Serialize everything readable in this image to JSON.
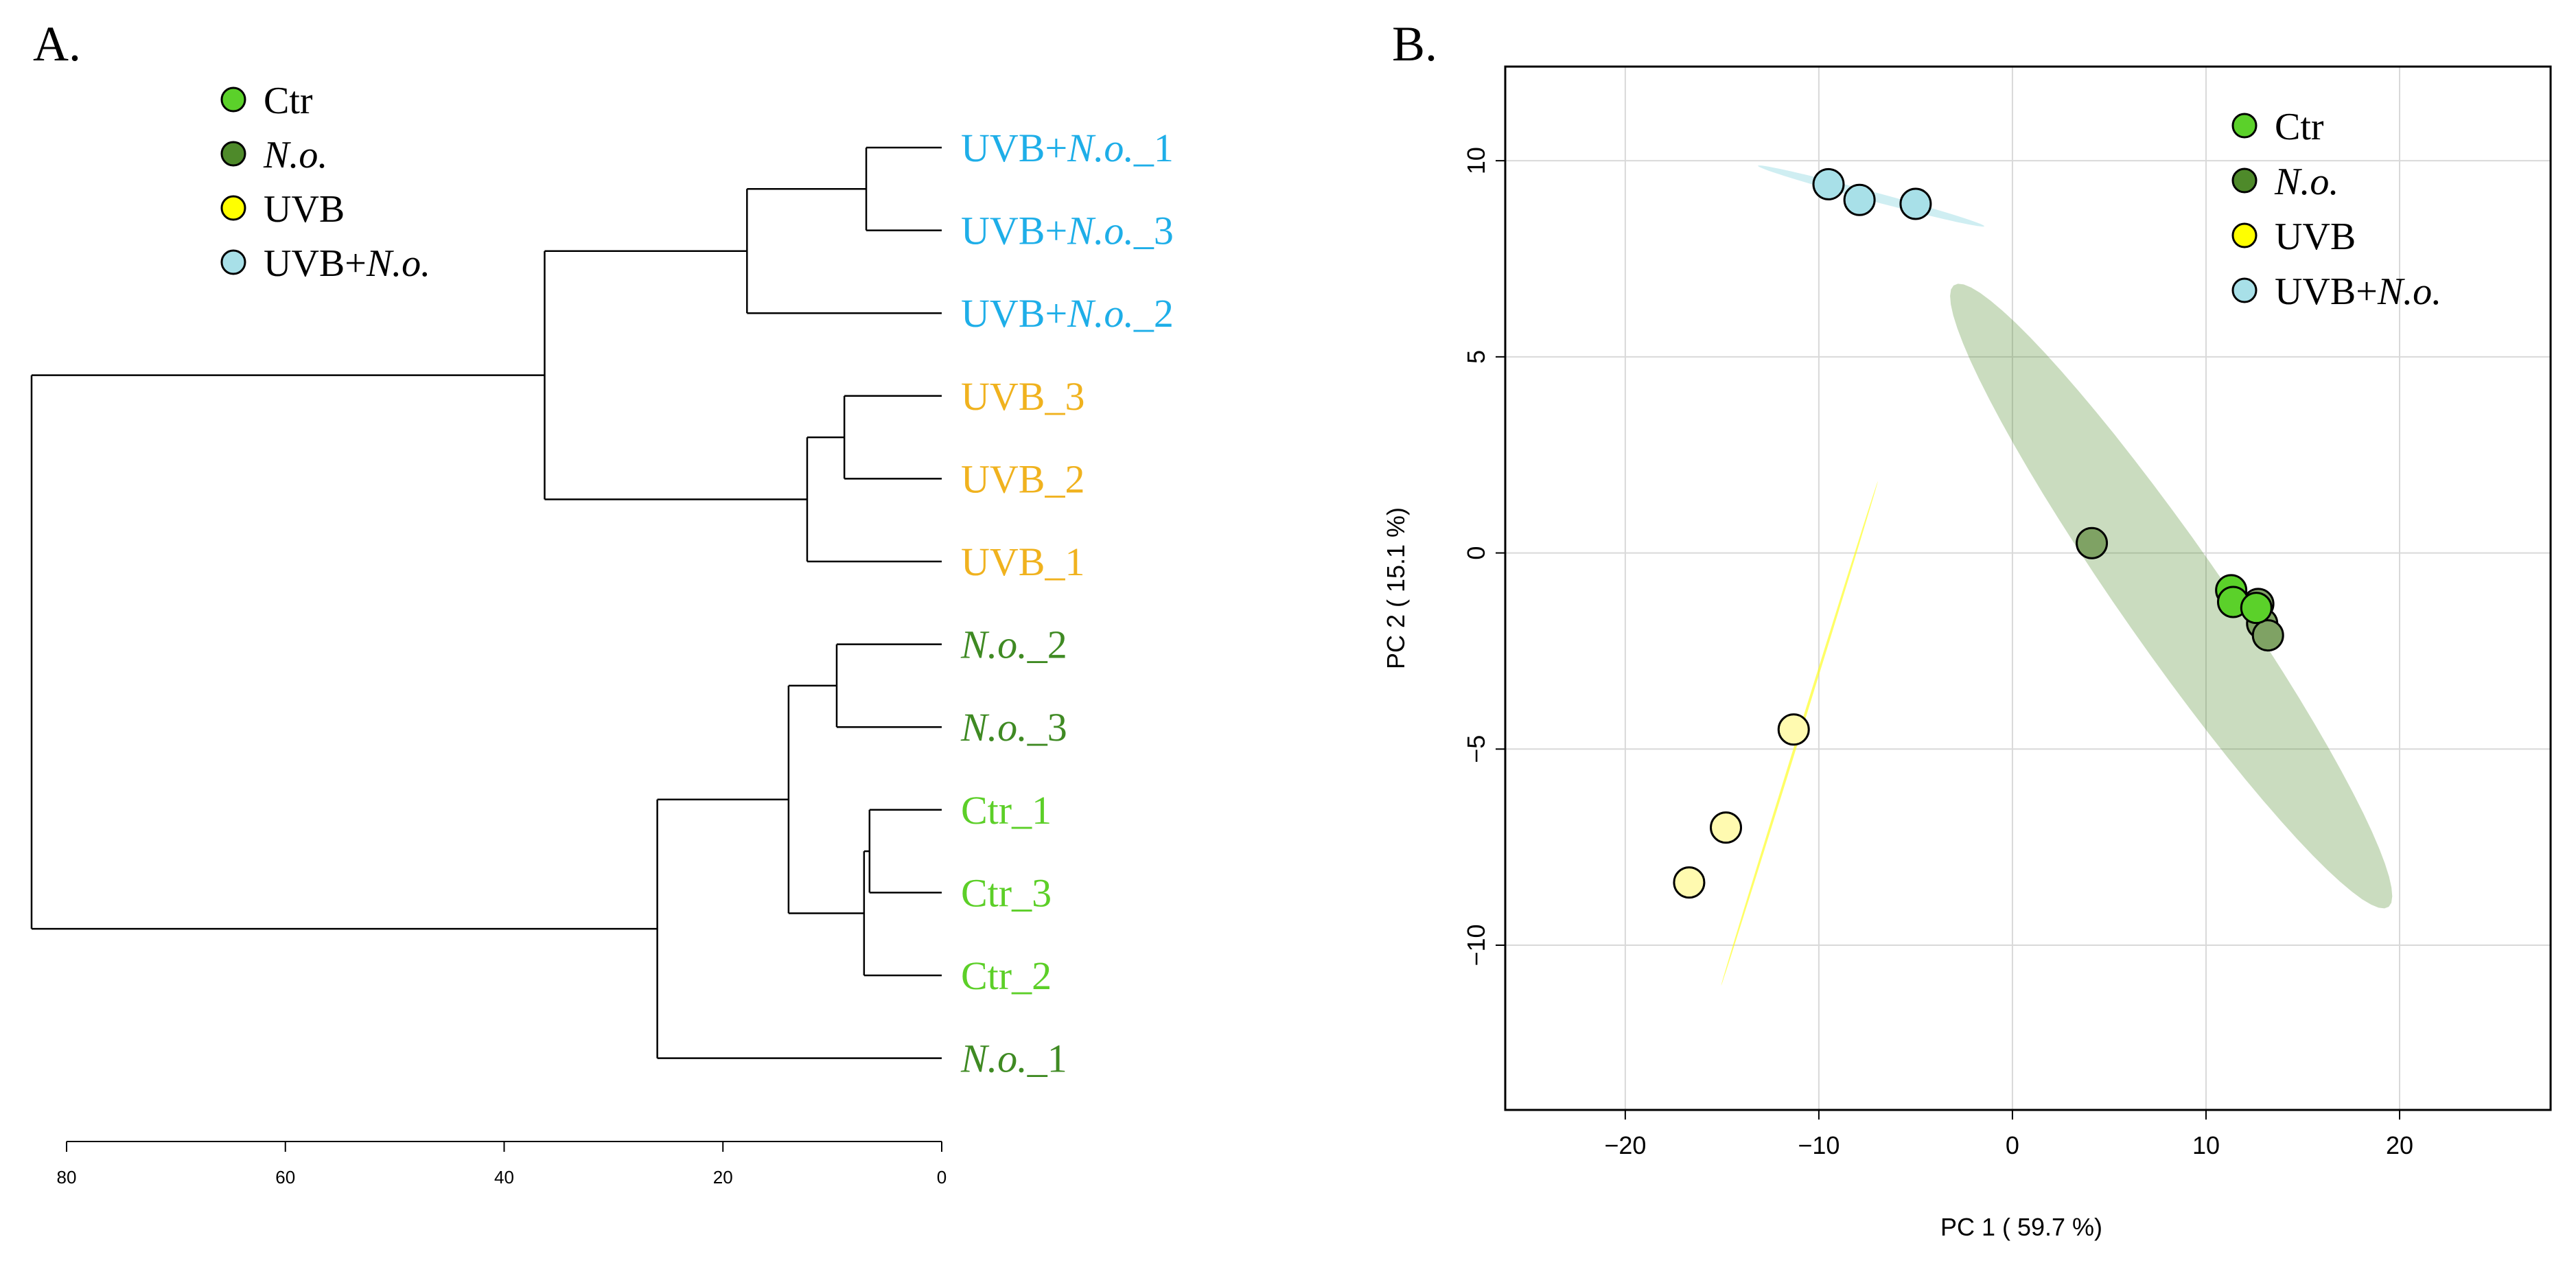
{
  "colors": {
    "Ctr": "#5bd12a",
    "No": "#4e8a2a",
    "UVB": "#ffff00",
    "UVBNo": "#a8e0e8",
    "label_ctr": "#5ccf28",
    "label_no": "#3f8a23",
    "label_uvb": "#f0b21e",
    "label_uvbno": "#1eaee8"
  },
  "panel_a": {
    "letter": "A.",
    "legend": [
      {
        "key": "Ctr",
        "parts": [
          {
            "t": "Ctr",
            "i": false
          }
        ]
      },
      {
        "key": "No",
        "parts": [
          {
            "t": "N.o.",
            "i": true
          }
        ]
      },
      {
        "key": "UVB",
        "parts": [
          {
            "t": "UVB",
            "i": false
          }
        ]
      },
      {
        "key": "UVBNo",
        "parts": [
          {
            "t": "UVB+",
            "i": false
          },
          {
            "t": "N.o.",
            "i": true
          }
        ]
      }
    ]
  },
  "panel_b": {
    "letter": "B.",
    "legend": [
      {
        "key": "Ctr",
        "parts": [
          {
            "t": "Ctr",
            "i": false
          }
        ]
      },
      {
        "key": "No",
        "parts": [
          {
            "t": "N.o.",
            "i": true
          }
        ]
      },
      {
        "key": "UVB",
        "parts": [
          {
            "t": "UVB",
            "i": false
          }
        ]
      },
      {
        "key": "UVBNo",
        "parts": [
          {
            "t": "UVB+",
            "i": false
          },
          {
            "t": "N.o.",
            "i": true
          }
        ]
      }
    ]
  },
  "chart_data": [
    {
      "type": "dendrogram",
      "orientation": "horizontal",
      "axis_ticks": [
        80,
        60,
        40,
        20,
        0
      ],
      "xlim": [
        83.2,
        0
      ],
      "leaves": [
        {
          "id": "UVBNo_1",
          "color": "label_uvbno",
          "parts": [
            {
              "t": "UVB+",
              "i": false
            },
            {
              "t": "N.o.",
              "i": true
            },
            {
              "t": "_1",
              "i": false
            }
          ]
        },
        {
          "id": "UVBNo_3",
          "color": "label_uvbno",
          "parts": [
            {
              "t": "UVB+",
              "i": false
            },
            {
              "t": "N.o.",
              "i": true
            },
            {
              "t": "_3",
              "i": false
            }
          ]
        },
        {
          "id": "UVBNo_2",
          "color": "label_uvbno",
          "parts": [
            {
              "t": "UVB+",
              "i": false
            },
            {
              "t": "N.o.",
              "i": true
            },
            {
              "t": "_2",
              "i": false
            }
          ]
        },
        {
          "id": "UVB_3",
          "color": "label_uvb",
          "parts": [
            {
              "t": "UVB_3",
              "i": false
            }
          ]
        },
        {
          "id": "UVB_2",
          "color": "label_uvb",
          "parts": [
            {
              "t": "UVB_2",
              "i": false
            }
          ]
        },
        {
          "id": "UVB_1",
          "color": "label_uvb",
          "parts": [
            {
              "t": "UVB_1",
              "i": false
            }
          ]
        },
        {
          "id": "No_2",
          "color": "label_no",
          "parts": [
            {
              "t": "N.o.",
              "i": true
            },
            {
              "t": "_2",
              "i": false
            }
          ]
        },
        {
          "id": "No_3",
          "color": "label_no",
          "parts": [
            {
              "t": "N.o.",
              "i": true
            },
            {
              "t": "_3",
              "i": false
            }
          ]
        },
        {
          "id": "Ctr_1",
          "color": "label_ctr",
          "parts": [
            {
              "t": "Ctr_1",
              "i": false
            }
          ]
        },
        {
          "id": "Ctr_3",
          "color": "label_ctr",
          "parts": [
            {
              "t": "Ctr_3",
              "i": false
            }
          ]
        },
        {
          "id": "Ctr_2",
          "color": "label_ctr",
          "parts": [
            {
              "t": "Ctr_2",
              "i": false
            }
          ]
        },
        {
          "id": "No_1",
          "color": "label_no",
          "parts": [
            {
              "t": "N.o.",
              "i": true
            },
            {
              "t": "_1",
              "i": false
            }
          ]
        }
      ],
      "merges": [
        {
          "id": "m1",
          "children": [
            "UVBNo_1",
            "UVBNo_3"
          ],
          "height": 6.9
        },
        {
          "id": "m2",
          "children": [
            "m1",
            "UVBNo_2"
          ],
          "height": 17.8
        },
        {
          "id": "m3",
          "children": [
            "UVB_3",
            "UVB_2"
          ],
          "height": 8.9
        },
        {
          "id": "m4",
          "children": [
            "m3",
            "UVB_1"
          ],
          "height": 12.3
        },
        {
          "id": "m5",
          "children": [
            "m2",
            "m4"
          ],
          "height": 36.3
        },
        {
          "id": "m6",
          "children": [
            "No_2",
            "No_3"
          ],
          "height": 9.6
        },
        {
          "id": "m7",
          "children": [
            "Ctr_1",
            "Ctr_3"
          ],
          "height": 6.6
        },
        {
          "id": "m8",
          "children": [
            "m7",
            "Ctr_2"
          ],
          "height": 7.1
        },
        {
          "id": "m9",
          "children": [
            "m6",
            "m8"
          ],
          "height": 14.0
        },
        {
          "id": "m10",
          "children": [
            "m9",
            "No_1"
          ],
          "height": 26.0
        },
        {
          "id": "m11",
          "children": [
            "m5",
            "m10"
          ],
          "height": 83.2
        }
      ]
    },
    {
      "type": "scatter",
      "title": "",
      "xlabel": "PC 1 ( 59.7 %)",
      "ylabel": "PC 2 ( 15.1 %)",
      "xlim": [
        -26.2,
        27.8
      ],
      "ylim": [
        -14.2,
        12.4
      ],
      "xticks": [
        -20,
        -10,
        0,
        10,
        20
      ],
      "yticks": [
        -10,
        -5,
        0,
        5,
        10
      ],
      "xtick_labels": [
        "−20",
        "−10",
        "0",
        "10",
        "20"
      ],
      "ytick_labels": [
        "−10",
        "−5",
        "0",
        "5",
        "10"
      ],
      "grid": true,
      "legend_position": "top-right",
      "ellipses": [
        {
          "group": "UVBNo",
          "cx": -7.3,
          "cy": 9.1,
          "rx": 5.9,
          "ry": 0.12,
          "angle_deg": -7.5,
          "opacity": 0.55
        },
        {
          "group": "No",
          "cx": 8.2,
          "cy": -1.1,
          "rx": 13.8,
          "ry": 1.85,
          "angle_deg": -34.5,
          "opacity": 0.3
        },
        {
          "group": "UVB",
          "cx": -11.0,
          "cy": -4.6,
          "rx": 7.6,
          "ry": 0.06,
          "angle_deg": 57.8,
          "opacity": 0.6
        }
      ],
      "series": [
        {
          "name": "UVB+N.o.",
          "group": "UVBNo",
          "points": [
            {
              "x": -9.5,
              "y": 9.4
            },
            {
              "x": -7.9,
              "y": 9.0
            },
            {
              "x": -5.0,
              "y": 8.9
            }
          ]
        },
        {
          "name": "UVB",
          "group": "UVB",
          "points": [
            {
              "x": -11.3,
              "y": -4.5
            },
            {
              "x": -14.8,
              "y": -7.0
            },
            {
              "x": -16.7,
              "y": -8.4
            }
          ]
        },
        {
          "name": "N.o.",
          "group": "No",
          "points": [
            {
              "x": 4.1,
              "y": 0.25
            },
            {
              "x": 12.7,
              "y": -1.3
            },
            {
              "x": 12.9,
              "y": -1.8
            },
            {
              "x": 13.2,
              "y": -2.1
            }
          ]
        },
        {
          "name": "Ctr",
          "group": "Ctr",
          "points": [
            {
              "x": 11.3,
              "y": -0.95
            },
            {
              "x": 11.4,
              "y": -1.25
            },
            {
              "x": 12.6,
              "y": -1.4
            }
          ]
        }
      ]
    }
  ]
}
